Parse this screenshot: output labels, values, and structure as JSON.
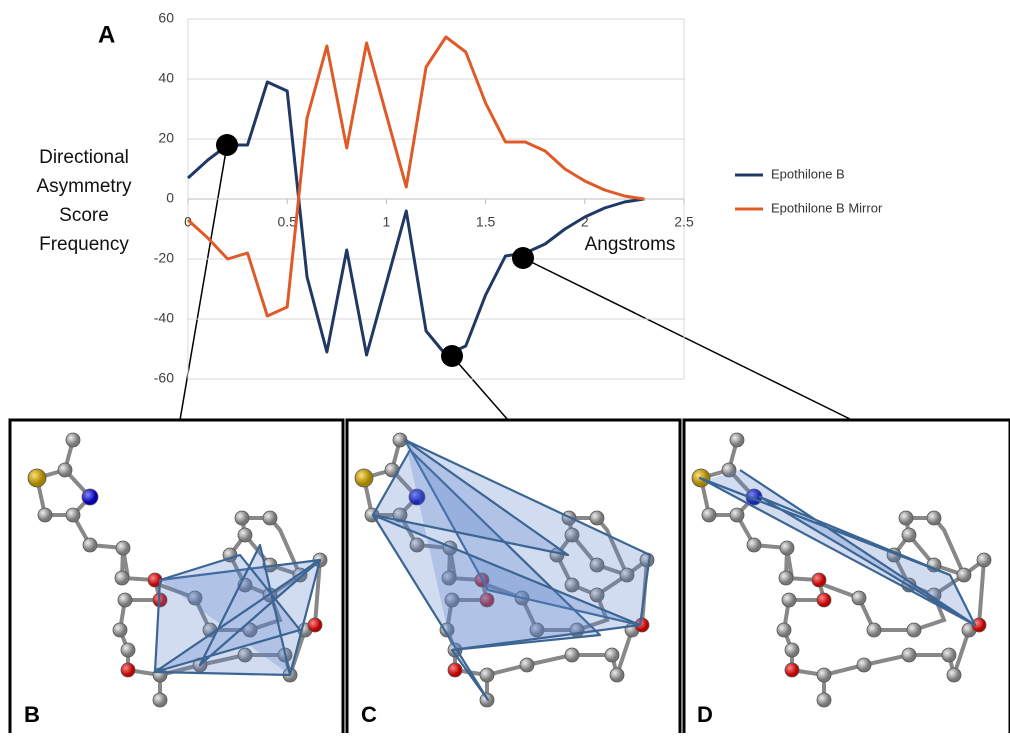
{
  "chart_data": {
    "type": "line",
    "panel_label": "A",
    "y_label": [
      "Directional",
      "Asymmetry",
      "Score",
      "Frequency"
    ],
    "x_label": "Angstroms",
    "x": [
      0,
      0.1,
      0.2,
      0.3,
      0.4,
      0.5,
      0.6,
      0.7,
      0.8,
      0.9,
      1.0,
      1.1,
      1.2,
      1.3,
      1.4,
      1.5,
      1.6,
      1.7,
      1.8,
      1.9,
      2.0,
      2.1,
      2.2,
      2.3
    ],
    "series": [
      {
        "name": "Epothilone B",
        "color": "#1f3864",
        "values": [
          7,
          13,
          18,
          18,
          39,
          36,
          -26,
          -51,
          -17,
          -52,
          -28,
          -4,
          -44,
          -52,
          -49,
          -32,
          -19,
          -18,
          -15,
          -10,
          -6,
          -3,
          -1,
          0
        ]
      },
      {
        "name": "Epothilone B Mirror",
        "color": "#e05a28",
        "values": [
          -7,
          -13,
          -20,
          -18,
          -39,
          -36,
          27,
          51,
          17,
          52,
          28,
          4,
          44,
          54,
          49,
          32,
          19,
          19,
          16,
          10,
          6,
          3,
          1,
          0
        ]
      }
    ],
    "xlim": [
      0,
      2.5
    ],
    "xticks": [
      0,
      0.5,
      1,
      1.5,
      2,
      2.5
    ],
    "ylim": [
      -60,
      60
    ],
    "yticks": [
      60,
      40,
      20,
      0,
      -20,
      -40,
      -60
    ],
    "grid": true,
    "legend": "right",
    "panels": [
      "B",
      "C",
      "D"
    ]
  }
}
